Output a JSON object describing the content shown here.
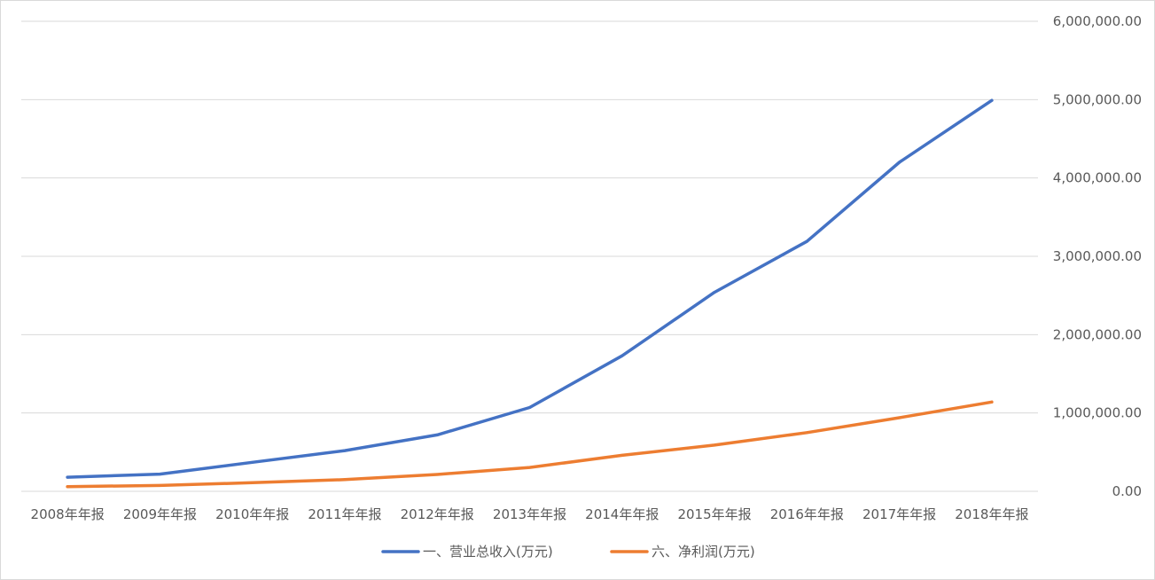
{
  "chart_data": {
    "type": "line",
    "title": "",
    "xlabel": "",
    "ylabel": "",
    "categories": [
      "2008年年报",
      "2009年年报",
      "2010年年报",
      "2011年年报",
      "2012年年报",
      "2013年年报",
      "2014年年报",
      "2015年年报",
      "2016年年报",
      "2017年年报",
      "2018年年报"
    ],
    "series": [
      {
        "name": "一、营业总收入(万元)",
        "color": "#4472c4",
        "values": [
          180000,
          220000,
          370000,
          520000,
          720000,
          1070000,
          1730000,
          2540000,
          3190000,
          4200000,
          4990000
        ]
      },
      {
        "name": "六、净利润(万元)",
        "color": "#ed7d31",
        "values": [
          60000,
          75000,
          110000,
          150000,
          215000,
          305000,
          460000,
          590000,
          750000,
          940000,
          1140000
        ]
      }
    ],
    "ylim": [
      0,
      6000000
    ],
    "yticks": [
      0,
      1000000,
      2000000,
      3000000,
      4000000,
      5000000,
      6000000
    ],
    "ytick_labels": [
      "0.00",
      "1,000,000.00",
      "2,000,000.00",
      "3,000,000.00",
      "4,000,000.00",
      "5,000,000.00",
      "6,000,000.00"
    ],
    "y_axis_side": "right",
    "grid": true,
    "legend_position": "bottom"
  }
}
